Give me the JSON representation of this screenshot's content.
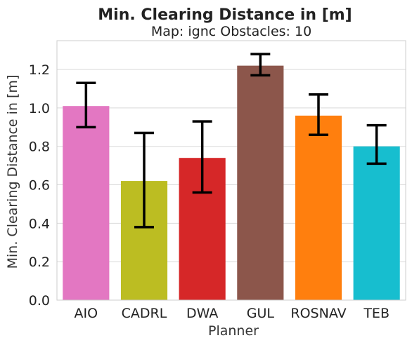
{
  "chart_data": {
    "type": "bar",
    "title": "Min. Clearing Distance in [m]",
    "subtitle": "Map: ignc Obstacles: 10",
    "xlabel": "Planner",
    "ylabel": "Min. Clearing Distance in [m]",
    "categories": [
      "AIO",
      "CADRL",
      "DWA",
      "GUL",
      "ROSNAV",
      "TEB"
    ],
    "values": [
      1.01,
      0.62,
      0.74,
      1.22,
      0.96,
      0.8
    ],
    "error_low": [
      0.9,
      0.38,
      0.56,
      1.17,
      0.86,
      0.71
    ],
    "error_high": [
      1.13,
      0.87,
      0.93,
      1.28,
      1.07,
      0.91
    ],
    "colors": [
      "#e377c2",
      "#bcbd22",
      "#d62728",
      "#8c564b",
      "#ff7f0e",
      "#17becf"
    ],
    "ylim": [
      0,
      1.35
    ],
    "yticks": [
      "0.0",
      "0.2",
      "0.4",
      "0.6",
      "0.8",
      "1.0",
      "1.2"
    ],
    "grid": true
  }
}
